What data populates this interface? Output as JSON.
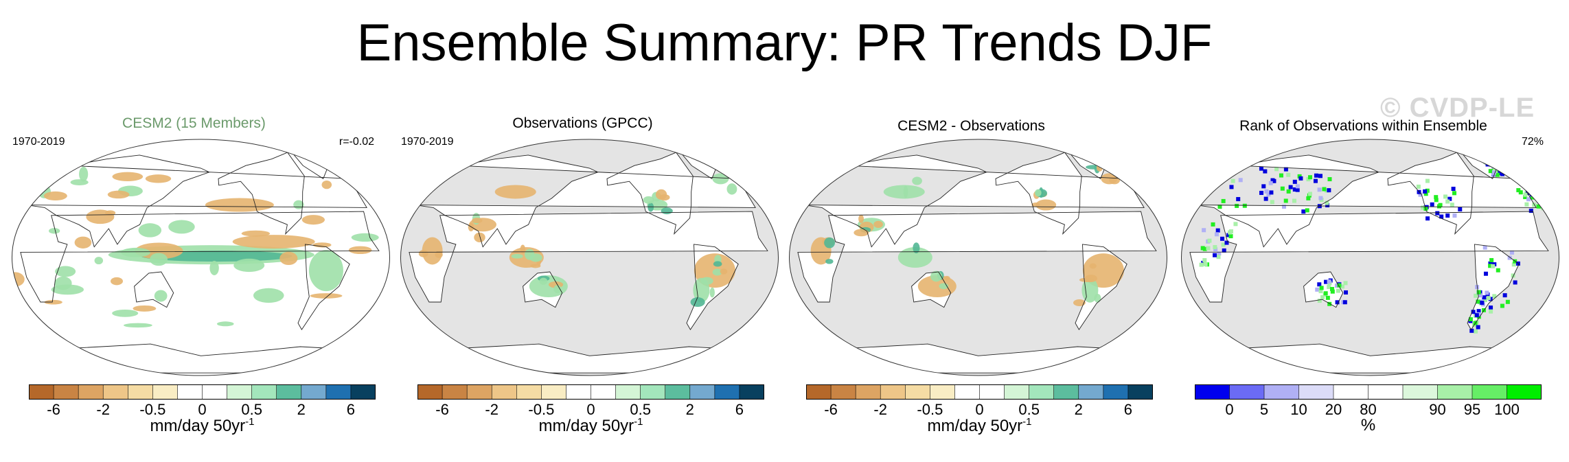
{
  "title": "Ensemble Summary: PR Trends DJF",
  "watermark": "© CVDP-LE",
  "panels": [
    {
      "title": "CESM2 (15 Members)",
      "period": "1970-2019",
      "stat": "r=-0.02",
      "background": "#ffffff"
    },
    {
      "title": "Observations (GPCC)",
      "period": "1970-2019",
      "stat": "",
      "background": "#e4e4e4"
    },
    {
      "title": "CESM2 - Observations",
      "period": "",
      "stat": "",
      "background": "#e4e4e4"
    },
    {
      "title": "Rank of Observations within Ensemble",
      "period": "",
      "stat": "72%",
      "background": "#e4e4e4"
    }
  ],
  "trend_colorbar": {
    "colors": [
      "#b5682a",
      "#c98444",
      "#dda463",
      "#eec688",
      "#f5dca4",
      "#f9edc4",
      "#ffffff",
      "#ffffff",
      "#d4f5d6",
      "#a3e6bc",
      "#5cbd9e",
      "#74a9cf",
      "#1f70b0",
      "#08405f"
    ],
    "ticks": [
      "-6",
      "-2",
      "-0.5",
      "0",
      "0.5",
      "2",
      "6"
    ],
    "label": "mm/day 50yr",
    "label_sup": "-1"
  },
  "rank_colorbar": {
    "colors": [
      "#0000ee",
      "#6b6bf5",
      "#b0b0f5",
      "#dcdcf8",
      "#ffffff",
      "#ffffff",
      "#dcf7dc",
      "#a8f0a8",
      "#66ee66",
      "#00ee00"
    ],
    "ticks": [
      "0",
      "5",
      "10",
      "20",
      "80",
      "90",
      "95",
      "100"
    ],
    "label": "%"
  },
  "map_colors": {
    "outline": "#333333",
    "coast": "#222222",
    "green": "#9fe0a8",
    "brown": "#e6b46f",
    "teal": "#52b795",
    "blue": "#0000dd",
    "bright_green": "#22ee22"
  }
}
